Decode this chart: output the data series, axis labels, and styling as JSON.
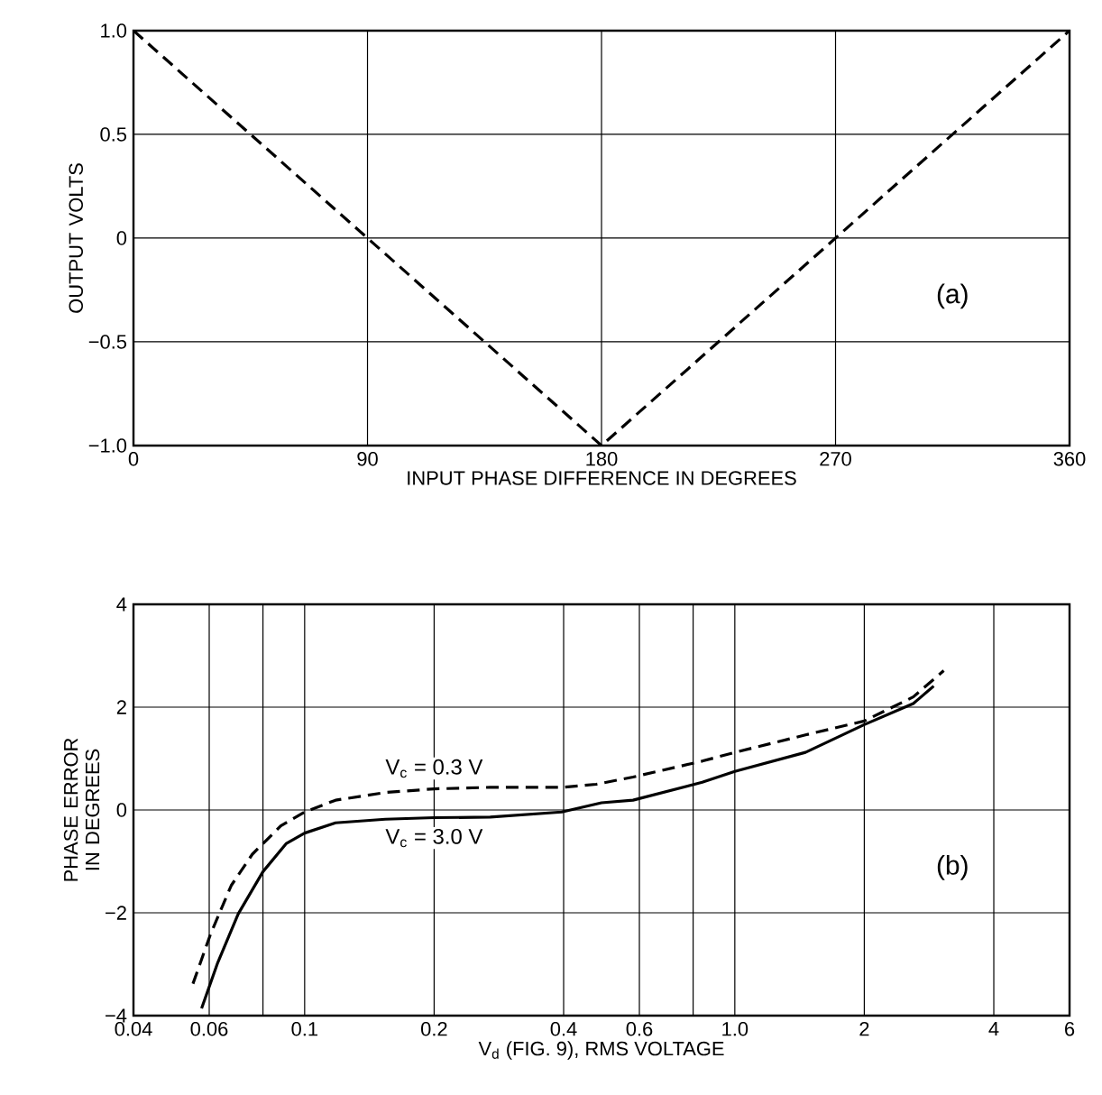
{
  "chart_data": [
    {
      "type": "line",
      "xlabel": "INPUT PHASE DIFFERENCE IN DEGREES",
      "ylabel": "OUTPUT VOLTS",
      "x": [
        0,
        180,
        360
      ],
      "series": [
        {
          "color": "#000000",
          "line_style": "dashed",
          "values": [
            1,
            -1,
            1
          ]
        }
      ],
      "xlim": [
        0,
        360
      ],
      "xticks": [
        0,
        90,
        180,
        270,
        360
      ],
      "ylim": [
        -1,
        1
      ],
      "yticks": [
        {
          "value": -1,
          "label": "−1.0"
        },
        {
          "value": -0.5,
          "label": "−0.5"
        },
        0,
        0.5,
        {
          "value": 1,
          "label": "1.0"
        }
      ],
      "grid": true,
      "annotations": [
        "(a)"
      ]
    },
    {
      "type": "line",
      "xlabel": "V$_{d}$ (FIG. 9), RMS VOLTAGE",
      "ylabel": "PHASE ERROR IN DEGREES",
      "log": "x",
      "series": [
        {
          "name": "V$_{c}$ = 0.3 V",
          "color": "#000000",
          "line_style": "dashed",
          "x": [
            0.055,
            0.0604,
            0.0675,
            0.0756,
            0.088,
            0.1,
            0.118,
            0.154,
            0.2,
            0.27,
            0.396,
            0.476,
            0.58,
            0.84,
            1.0,
            1.46,
            2.0,
            2.6,
            3.06
          ],
          "values": [
            -3.38,
            -2.42,
            -1.47,
            -0.86,
            -0.31,
            -0.04,
            0.19,
            0.34,
            0.41,
            0.44,
            0.44,
            0.5,
            0.64,
            0.95,
            1.12,
            1.46,
            1.73,
            2.2,
            2.71
          ]
        },
        {
          "name": "V$_{c}$ = 3.0 V",
          "color": "#000000",
          "line_style": "solid",
          "x": [
            0.0576,
            0.0628,
            0.0701,
            0.08,
            0.0907,
            0.1,
            0.118,
            0.154,
            0.2,
            0.27,
            0.396,
            0.49,
            0.58,
            0.84,
            1.0,
            1.46,
            2.0,
            2.6,
            2.9
          ],
          "values": [
            -3.86,
            -2.97,
            -2.02,
            -1.2,
            -0.65,
            -0.45,
            -0.25,
            -0.18,
            -0.15,
            -0.14,
            -0.04,
            0.14,
            0.19,
            0.54,
            0.75,
            1.12,
            1.66,
            2.07,
            2.41
          ]
        }
      ],
      "xlim": [
        0.04,
        6
      ],
      "xticks": [
        0.04,
        0.06,
        {
          "value": 0.08,
          "label": null
        },
        0.1,
        0.2,
        0.4,
        0.6,
        {
          "value": 0.8,
          "label": null
        },
        {
          "value": 1,
          "label": "1.0"
        },
        2,
        4,
        6
      ],
      "ylim": [
        -4,
        4
      ],
      "yticks": [
        {
          "value": -4,
          "label": "−4"
        },
        {
          "value": -2,
          "label": "−2"
        },
        0,
        2,
        4
      ],
      "grid": true,
      "annotations": [
        "(b)"
      ]
    }
  ]
}
